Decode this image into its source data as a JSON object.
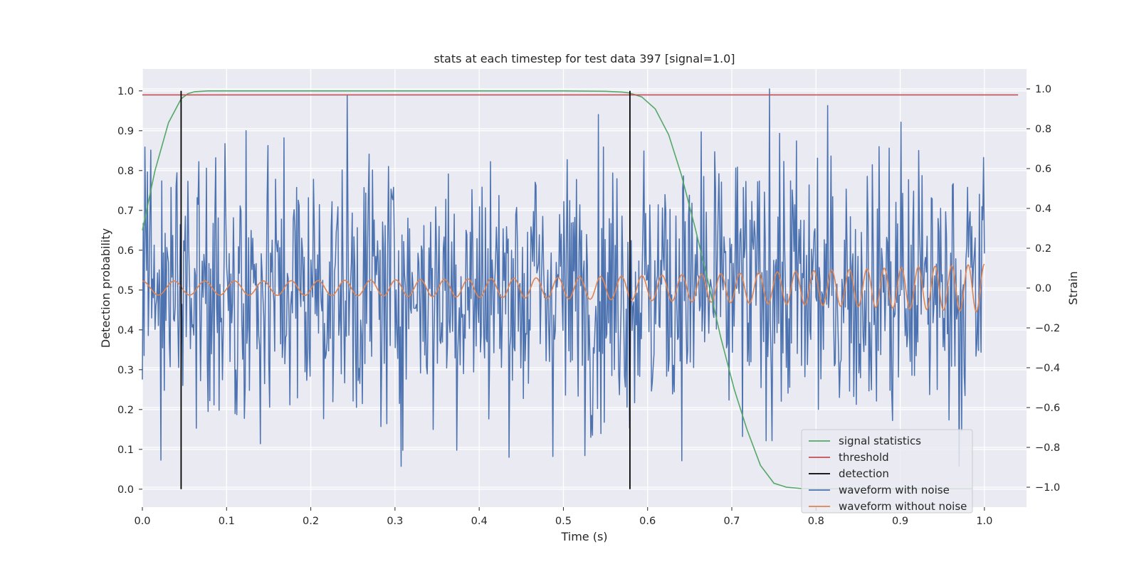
{
  "chart_data": {
    "type": "line",
    "title": "stats at each timestep for test data 397 [signal=1.0]",
    "xlabel": "Time (s)",
    "ylabel": "Detection probability",
    "ylabel_right": "Strain",
    "xlim": [
      0.0,
      1.05
    ],
    "ylim": [
      -0.045,
      1.055
    ],
    "ylim_right": [
      -1.1,
      1.1
    ],
    "x_ticks": [
      "0.0",
      "0.1",
      "0.2",
      "0.3",
      "0.4",
      "0.5",
      "0.6",
      "0.7",
      "0.8",
      "0.9",
      "1.0"
    ],
    "y_ticks": [
      "0.0",
      "0.1",
      "0.2",
      "0.3",
      "0.4",
      "0.5",
      "0.6",
      "0.7",
      "0.8",
      "0.9",
      "1.0"
    ],
    "y_ticks_right": [
      "−1.0",
      "−0.8",
      "−0.6",
      "−0.4",
      "−0.2",
      "0.0",
      "0.2",
      "0.4",
      "0.6",
      "0.8",
      "1.0"
    ],
    "grid": true,
    "background": "#eaeaf2",
    "legend_position": "lower-right",
    "threshold": {
      "name": "threshold",
      "value": 0.99,
      "x_range": [
        0.0,
        1.04
      ],
      "color": "#c44e52"
    },
    "detections": {
      "name": "detection",
      "x": [
        0.046,
        0.579
      ],
      "y_range": [
        0.0,
        1.0
      ],
      "color": "#000000"
    },
    "signal_statistics": {
      "name": "signal statistics",
      "color": "#55a868",
      "x": [
        0.0,
        0.015,
        0.031,
        0.046,
        0.054,
        0.062,
        0.078,
        0.1,
        0.2,
        0.3,
        0.4,
        0.5,
        0.55,
        0.57,
        0.578,
        0.593,
        0.609,
        0.625,
        0.64,
        0.656,
        0.672,
        0.687,
        0.703,
        0.718,
        0.734,
        0.75,
        0.765,
        0.781,
        0.8,
        0.85,
        0.9,
        0.95,
        0.985
      ],
      "y": [
        0.65,
        0.8,
        0.92,
        0.98,
        0.993,
        0.998,
        1.0,
        1.0,
        1.0,
        1.0,
        1.0,
        1.0,
        0.999,
        0.997,
        0.995,
        0.985,
        0.955,
        0.89,
        0.79,
        0.66,
        0.52,
        0.38,
        0.25,
        0.15,
        0.06,
        0.015,
        0.005,
        0.002,
        0.001,
        0.001,
        0.001,
        0.001,
        0.001
      ]
    },
    "waveform_without_noise": {
      "name": "waveform without noise",
      "color": "#dd8452",
      "t_range": [
        0.0,
        1.0
      ],
      "amplitude_start": 0.035,
      "amplitude_end": 0.12,
      "frequency_start_hz": 26,
      "frequency_end_hz": 52,
      "note_visible": "chirp oscillating around 0.0 strain"
    },
    "waveform_with_noise": {
      "name": "waveform with noise",
      "color": "#4c72b0",
      "t_range": [
        0.0,
        1.0
      ],
      "n_points": 1000,
      "strain_min": -0.97,
      "strain_max": 1.0,
      "strain_std": 0.33,
      "peak_x": 0.745
    },
    "legend": [
      {
        "label": "signal statistics",
        "color": "#55a868"
      },
      {
        "label": "threshold",
        "color": "#c44e52"
      },
      {
        "label": "detection",
        "color": "#000000"
      },
      {
        "label": "waveform with noise",
        "color": "#4c72b0"
      },
      {
        "label": "waveform without noise",
        "color": "#dd8452"
      }
    ]
  }
}
